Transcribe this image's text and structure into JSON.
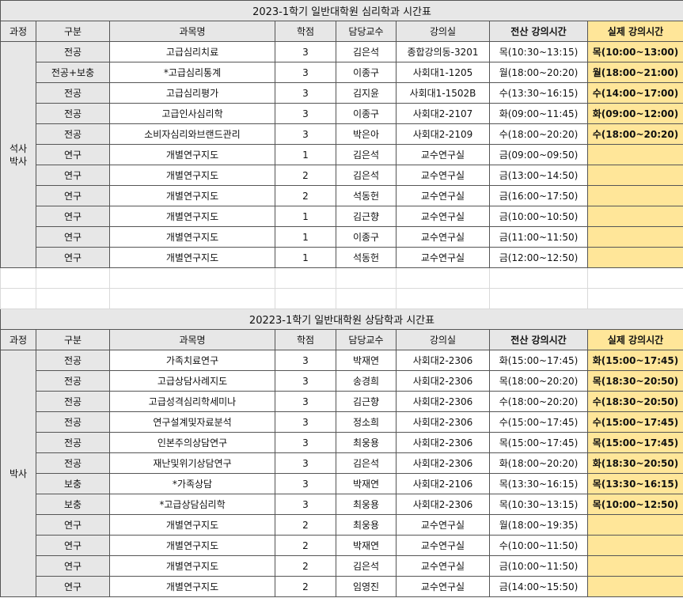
{
  "headers": [
    "과정",
    "구분",
    "과목명",
    "학점",
    "담당교수",
    "강의실",
    "전산 강의시간",
    "실제 강의시간"
  ],
  "colors": {
    "header_gray": "#e7e7e7",
    "actual_time_yellow": "#ffe699"
  },
  "tables": [
    {
      "title": "2023-1학기 일반대학원 심리학과 시간표",
      "program": "석사\n박사",
      "rows": [
        {
          "type": "전공",
          "course": "고급심리치료",
          "credits": "3",
          "professor": "김은석",
          "room": "종합강의동-3201",
          "system_time": "목(10:30~13:15)",
          "actual_time": "목(10:00~13:00)"
        },
        {
          "type": "전공+보충",
          "course": "*고급심리통계",
          "credits": "3",
          "professor": "이종구",
          "room": "사회대1-1205",
          "system_time": "월(18:00~20:20)",
          "actual_time": "월(18:00~21:00)"
        },
        {
          "type": "전공",
          "course": "고급심리평가",
          "credits": "3",
          "professor": "김지윤",
          "room": "사회대1-1502B",
          "system_time": "수(13:30~16:15)",
          "actual_time": "수(14:00~17:00)"
        },
        {
          "type": "전공",
          "course": "고급인사심리학",
          "credits": "3",
          "professor": "이종구",
          "room": "사회대2-2107",
          "system_time": "화(09:00~11:45)",
          "actual_time": "화(09:00~12:00)"
        },
        {
          "type": "전공",
          "course": "소비자심리와브랜드관리",
          "credits": "3",
          "professor": "박은아",
          "room": "사회대2-2109",
          "system_time": "수(18:00~20:20)",
          "actual_time": "수(18:00~20:20)"
        },
        {
          "type": "연구",
          "course": "개별연구지도",
          "credits": "1",
          "professor": "김은석",
          "room": "교수연구실",
          "system_time": "금(09:00~09:50)",
          "actual_time": ""
        },
        {
          "type": "연구",
          "course": "개별연구지도",
          "credits": "2",
          "professor": "김은석",
          "room": "교수연구실",
          "system_time": "금(13:00~14:50)",
          "actual_time": ""
        },
        {
          "type": "연구",
          "course": "개별연구지도",
          "credits": "2",
          "professor": "석동헌",
          "room": "교수연구실",
          "system_time": "금(16:00~17:50)",
          "actual_time": ""
        },
        {
          "type": "연구",
          "course": "개별연구지도",
          "credits": "1",
          "professor": "김근향",
          "room": "교수연구실",
          "system_time": "금(10:00~10:50)",
          "actual_time": ""
        },
        {
          "type": "연구",
          "course": "개별연구지도",
          "credits": "1",
          "professor": "이종구",
          "room": "교수연구실",
          "system_time": "금(11:00~11:50)",
          "actual_time": ""
        },
        {
          "type": "연구",
          "course": "개별연구지도",
          "credits": "1",
          "professor": "석동헌",
          "room": "교수연구실",
          "system_time": "금(12:00~12:50)",
          "actual_time": ""
        }
      ]
    },
    {
      "title": "20223-1학기 일반대학원 상담학과 시간표",
      "program": "박사",
      "rows": [
        {
          "type": "전공",
          "course": "가족치료연구",
          "credits": "3",
          "professor": "박재연",
          "room": "사회대2-2306",
          "system_time": "화(15:00~17:45)",
          "actual_time": "화(15:00~17:45)"
        },
        {
          "type": "전공",
          "course": "고급상담사례지도",
          "credits": "3",
          "professor": "송경희",
          "room": "사회대2-2306",
          "system_time": "목(18:00~20:20)",
          "actual_time": "목(18:30~20:50)"
        },
        {
          "type": "전공",
          "course": "고급성격심리학세미나",
          "credits": "3",
          "professor": "김근향",
          "room": "사회대2-2306",
          "system_time": "수(18:00~20:20)",
          "actual_time": "수(18:30~20:50)"
        },
        {
          "type": "전공",
          "course": "연구설계및자료분석",
          "credits": "3",
          "professor": "정소희",
          "room": "사회대2-2306",
          "system_time": "수(15:00~17:45)",
          "actual_time": "수(15:00~17:45)"
        },
        {
          "type": "전공",
          "course": "인본주의상담연구",
          "credits": "3",
          "professor": "최웅용",
          "room": "사회대2-2306",
          "system_time": "목(15:00~17:45)",
          "actual_time": "목(15:00~17:45)"
        },
        {
          "type": "전공",
          "course": "재난및위기상담연구",
          "credits": "3",
          "professor": "김은석",
          "room": "사회대2-2306",
          "system_time": "화(18:00~20:20)",
          "actual_time": "화(18:30~20:50)"
        },
        {
          "type": "보충",
          "course": "*가족상담",
          "credits": "3",
          "professor": "박재연",
          "room": "사회대2-2106",
          "system_time": "목(13:30~16:15)",
          "actual_time": "목(13:30~16:15)"
        },
        {
          "type": "보충",
          "course": "*고급상담심리학",
          "credits": "3",
          "professor": "최웅용",
          "room": "사회대2-2306",
          "system_time": "목(10:30~13:15)",
          "actual_time": "목(10:00~12:50)"
        },
        {
          "type": "연구",
          "course": "개별연구지도",
          "credits": "2",
          "professor": "최웅용",
          "room": "교수연구실",
          "system_time": "월(18:00~19:35)",
          "actual_time": ""
        },
        {
          "type": "연구",
          "course": "개별연구지도",
          "credits": "2",
          "professor": "박재연",
          "room": "교수연구실",
          "system_time": "수(10:00~11:50)",
          "actual_time": ""
        },
        {
          "type": "연구",
          "course": "개별연구지도",
          "credits": "2",
          "professor": "김은석",
          "room": "교수연구실",
          "system_time": "금(10:00~11:50)",
          "actual_time": ""
        },
        {
          "type": "연구",
          "course": "개별연구지도",
          "credits": "2",
          "professor": "임영진",
          "room": "교수연구실",
          "system_time": "금(14:00~15:50)",
          "actual_time": ""
        }
      ]
    }
  ]
}
